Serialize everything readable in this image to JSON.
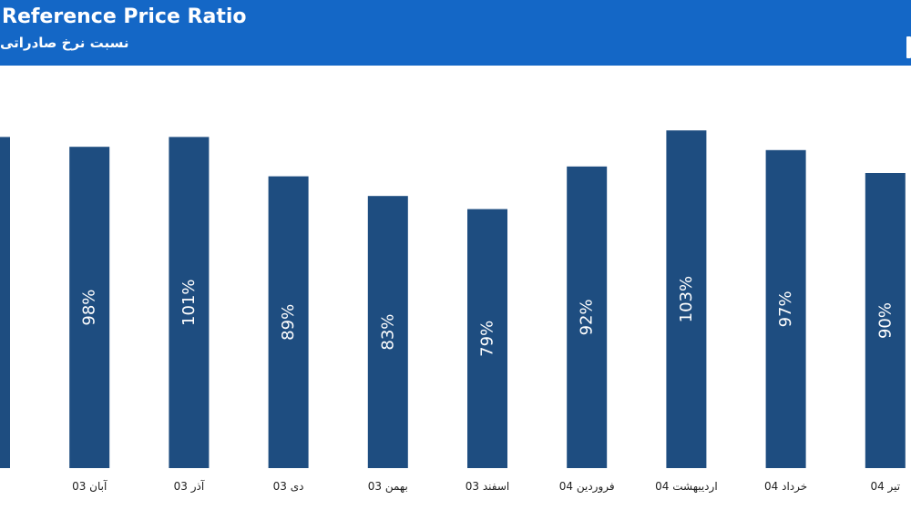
{
  "header": {
    "title": "Reference Price Ratio",
    "subtitle": "نسبت نرخ صادراتی"
  },
  "colors": {
    "header_bg": "#1467c6",
    "bar": "#1e4d80",
    "label": "#ffffff"
  },
  "chart_data": {
    "type": "bar",
    "categories": [
      "",
      "آبان 03",
      "آذر 03",
      "دی 03",
      "بهمن 03",
      "اسفند 03",
      "فروردین 04",
      "اردیبهشت 04",
      "خرداد 04",
      "تیر 04"
    ],
    "values": [
      101,
      98,
      101,
      89,
      83,
      79,
      92,
      103,
      97,
      90
    ],
    "data_labels": [
      "",
      "98%",
      "101%",
      "89%",
      "83%",
      "79%",
      "92%",
      "103%",
      "97%",
      "90%"
    ],
    "title": "Reference Price Ratio",
    "ylim": [
      0,
      105
    ],
    "grid": false,
    "legend": "none"
  }
}
